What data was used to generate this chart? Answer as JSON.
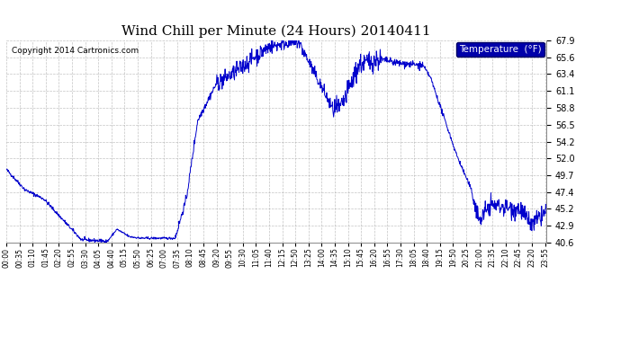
{
  "title": "Wind Chill per Minute (24 Hours) 20140411",
  "copyright": "Copyright 2014 Cartronics.com",
  "legend_label": "Temperature  (°F)",
  "line_color": "#0000cc",
  "bg_color": "#ffffff",
  "grid_color": "#aaaaaa",
  "legend_bg": "#0000aa",
  "legend_fg": "#ffffff",
  "ylim": [
    40.6,
    67.9
  ],
  "yticks": [
    40.6,
    42.9,
    45.2,
    47.4,
    49.7,
    52.0,
    54.2,
    56.5,
    58.8,
    61.1,
    63.4,
    65.6,
    67.9
  ],
  "xtick_fontsize": 5.5,
  "ytick_fontsize": 7.0,
  "title_fontsize": 11,
  "copyright_fontsize": 6.5
}
